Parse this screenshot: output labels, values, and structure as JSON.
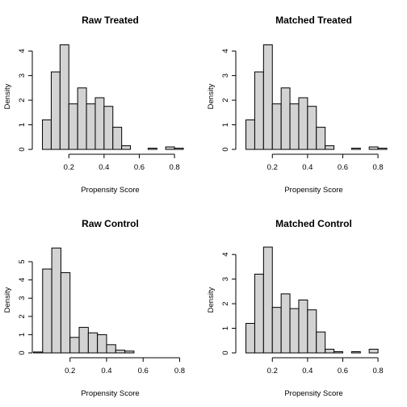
{
  "chart_data": [
    {
      "type": "bar",
      "title": "Raw Treated",
      "xlabel": "Propensity Score",
      "ylabel": "Density",
      "bin_edges": [
        0.05,
        0.1,
        0.15,
        0.2,
        0.25,
        0.3,
        0.35,
        0.4,
        0.45,
        0.5,
        0.55,
        0.6,
        0.65,
        0.7,
        0.75,
        0.8,
        0.85
      ],
      "values": [
        1.2,
        3.15,
        4.25,
        1.85,
        2.5,
        1.85,
        2.1,
        1.75,
        0.9,
        0.15,
        0,
        0,
        0.05,
        0,
        0.1,
        0.05
      ],
      "xlim": [
        0.02,
        0.85
      ],
      "ylim": [
        0,
        4.3
      ],
      "xticks": [
        0.2,
        0.4,
        0.6,
        0.8
      ],
      "xtick_labels": [
        "0.2",
        "0.4",
        "0.6",
        "0.8"
      ],
      "yticks": [
        0,
        1,
        2,
        3,
        4
      ],
      "ytick_labels": [
        "0",
        "1",
        "2",
        "3",
        "4"
      ]
    },
    {
      "type": "bar",
      "title": "Matched Treated",
      "xlabel": "Propensity Score",
      "ylabel": "Density",
      "bin_edges": [
        0.05,
        0.1,
        0.15,
        0.2,
        0.25,
        0.3,
        0.35,
        0.4,
        0.45,
        0.5,
        0.55,
        0.6,
        0.65,
        0.7,
        0.75,
        0.8,
        0.85
      ],
      "values": [
        1.2,
        3.15,
        4.25,
        1.85,
        2.5,
        1.85,
        2.1,
        1.75,
        0.9,
        0.15,
        0,
        0,
        0.05,
        0,
        0.1,
        0.05
      ],
      "xlim": [
        0.02,
        0.85
      ],
      "ylim": [
        0,
        4.3
      ],
      "xticks": [
        0.2,
        0.4,
        0.6,
        0.8
      ],
      "xtick_labels": [
        "0.2",
        "0.4",
        "0.6",
        "0.8"
      ],
      "yticks": [
        0,
        1,
        2,
        3,
        4
      ],
      "ytick_labels": [
        "0",
        "1",
        "2",
        "3",
        "4"
      ]
    },
    {
      "type": "bar",
      "title": "Raw Control",
      "xlabel": "Propensity Score",
      "ylabel": "Density",
      "bin_edges": [
        0,
        0.05,
        0.1,
        0.15,
        0.2,
        0.25,
        0.3,
        0.35,
        0.4,
        0.45,
        0.5,
        0.55,
        0.6,
        0.65,
        0.7,
        0.75,
        0.8
      ],
      "values": [
        0.05,
        4.6,
        5.75,
        4.4,
        0.85,
        1.4,
        1.1,
        1.0,
        0.45,
        0.15,
        0.1,
        0,
        0,
        0,
        0,
        0
      ],
      "xlim": [
        0.02,
        0.82
      ],
      "ylim": [
        0,
        5.8
      ],
      "xticks": [
        0.2,
        0.4,
        0.6,
        0.8
      ],
      "xtick_labels": [
        "0.2",
        "0.4",
        "0.6",
        "0.8"
      ],
      "yticks": [
        0,
        1,
        2,
        3,
        4,
        5
      ],
      "ytick_labels": [
        "0",
        "1",
        "2",
        "3",
        "4",
        "5"
      ]
    },
    {
      "type": "bar",
      "title": "Matched Control",
      "xlabel": "Propensity Score",
      "ylabel": "Density",
      "bin_edges": [
        0.05,
        0.1,
        0.15,
        0.2,
        0.25,
        0.3,
        0.35,
        0.4,
        0.45,
        0.5,
        0.55,
        0.6,
        0.65,
        0.7,
        0.75,
        0.8
      ],
      "values": [
        1.2,
        3.2,
        4.3,
        1.85,
        2.4,
        1.8,
        2.15,
        1.75,
        0.85,
        0.15,
        0.05,
        0,
        0.05,
        0,
        0.15
      ],
      "xlim": [
        0.02,
        0.85
      ],
      "ylim": [
        0,
        4.3
      ],
      "xticks": [
        0.2,
        0.4,
        0.6,
        0.8
      ],
      "xtick_labels": [
        "0.2",
        "0.4",
        "0.6",
        "0.8"
      ],
      "yticks": [
        0,
        1,
        2,
        3,
        4
      ],
      "ytick_labels": [
        "0",
        "1",
        "2",
        "3",
        "4"
      ]
    }
  ]
}
